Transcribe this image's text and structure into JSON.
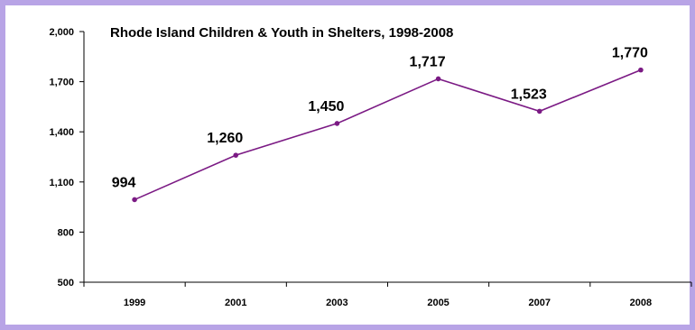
{
  "chart_data": {
    "type": "line",
    "title": "Rhode Island Children & Youth in Shelters, 1998-2008",
    "xlabel": "",
    "ylabel": "",
    "categories": [
      "1999",
      "2001",
      "2003",
      "2005",
      "2007",
      "2008"
    ],
    "series": [
      {
        "values": [
          994,
          1260,
          1450,
          1717,
          1523,
          1770
        ]
      }
    ],
    "data_labels": [
      "994",
      "1,260",
      "1,450",
      "1,717",
      "1,523",
      "1,770"
    ],
    "y_ticks": [
      500,
      800,
      1100,
      1400,
      1700,
      2000
    ],
    "y_tick_labels": [
      "500",
      "800",
      "1,100",
      "1,400",
      "1,700",
      "2,000"
    ],
    "ylim": [
      500,
      2000
    ],
    "grid": false,
    "legend": "none",
    "colors": {
      "line": "#7b1a84",
      "border": "#b8a4e6"
    }
  }
}
